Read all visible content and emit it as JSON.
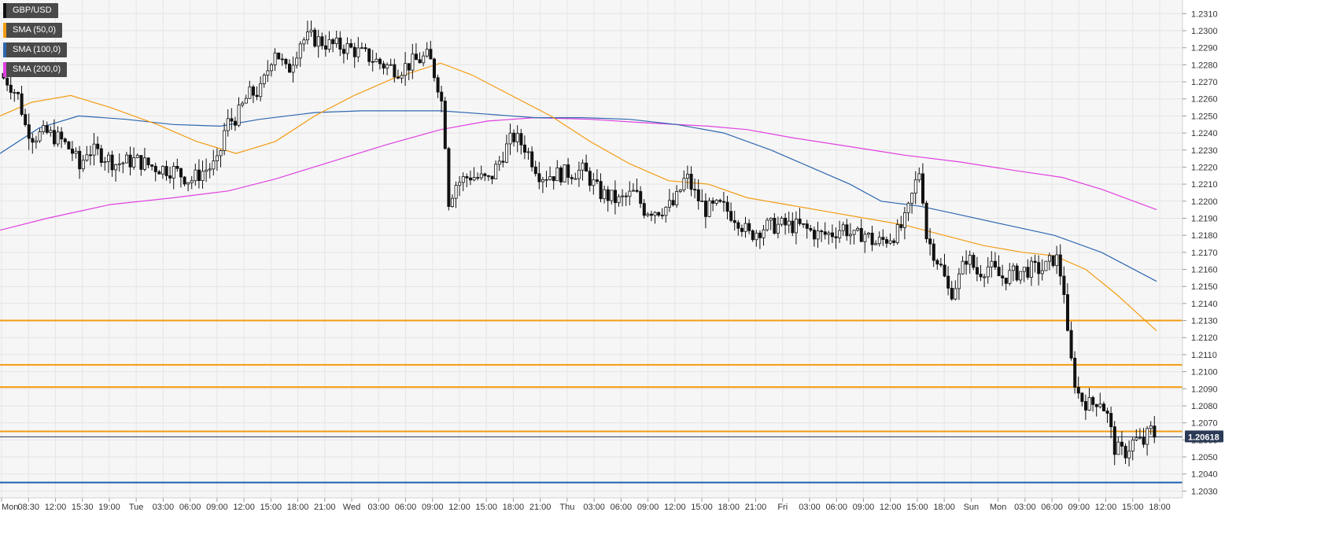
{
  "chart_data": {
    "type": "candlestick",
    "instrument": "GBP/USD",
    "timeframe_labels": [
      "Mon",
      "08:30",
      "12:00",
      "15:30",
      "19:00",
      "Tue",
      "03:00",
      "06:00",
      "09:00",
      "12:00",
      "15:00",
      "18:00",
      "21:00",
      "Wed",
      "03:00",
      "06:00",
      "09:00",
      "12:00",
      "15:00",
      "18:00",
      "21:00",
      "Thu",
      "03:00",
      "06:00",
      "09:00",
      "12:00",
      "15:00",
      "18:00",
      "21:00",
      "Fri",
      "03:00",
      "06:00",
      "09:00",
      "12:00",
      "15:00",
      "18:00",
      "Sun",
      "Mon",
      "03:00",
      "06:00",
      "09:00",
      "12:00",
      "15:00",
      "18:00"
    ],
    "y_ticks": [
      "1.2310",
      "1.2300",
      "1.2290",
      "1.2280",
      "1.2270",
      "1.2260",
      "1.2250",
      "1.2240",
      "1.2230",
      "1.2220",
      "1.2210",
      "1.2200",
      "1.2190",
      "1.2180",
      "1.2170",
      "1.2160",
      "1.2150",
      "1.2140",
      "1.2130",
      "1.2120",
      "1.2110",
      "1.2100",
      "1.2090",
      "1.2080",
      "1.2070",
      "1.2060",
      "1.2050",
      "1.2040",
      "1.2030"
    ],
    "ylim": [
      1.2026,
      1.2318
    ],
    "current_price": 1.20618,
    "current_price_label": "1.20618",
    "legend": [
      {
        "name": "GBP/USD",
        "color": "#111111"
      },
      {
        "name": "SMA (50,0)",
        "color": "#f39c12"
      },
      {
        "name": "SMA (100,0)",
        "color": "#2e67b0"
      },
      {
        "name": "SMA (200,0)",
        "color": "#e040e0"
      }
    ],
    "horizontal_levels": [
      {
        "value": 1.213,
        "color": "#f39c12"
      },
      {
        "value": 1.2104,
        "color": "#f39c12"
      },
      {
        "value": 1.2091,
        "color": "#f39c12"
      },
      {
        "value": 1.2065,
        "color": "#f39c12"
      },
      {
        "value": 1.2035,
        "color": "#1f5fb3"
      }
    ],
    "anchors": [
      [
        0,
        1.2275
      ],
      [
        14,
        1.227
      ],
      [
        28,
        1.226
      ],
      [
        34,
        1.2245
      ],
      [
        45,
        1.2238
      ],
      [
        62,
        1.224
      ],
      [
        80,
        1.2236
      ],
      [
        97,
        1.2228
      ],
      [
        105,
        1.2218
      ],
      [
        112,
        1.223
      ],
      [
        130,
        1.2228
      ],
      [
        150,
        1.2222
      ],
      [
        175,
        1.2224
      ],
      [
        200,
        1.222
      ],
      [
        225,
        1.2218
      ],
      [
        245,
        1.2212
      ],
      [
        262,
        1.2218
      ],
      [
        280,
        1.2222
      ],
      [
        290,
        1.2245
      ],
      [
        305,
        1.225
      ],
      [
        318,
        1.2262
      ],
      [
        335,
        1.2265
      ],
      [
        352,
        1.229
      ],
      [
        368,
        1.2275
      ],
      [
        385,
        1.2294
      ],
      [
        398,
        1.2296
      ],
      [
        420,
        1.2292
      ],
      [
        445,
        1.229
      ],
      [
        470,
        1.2285
      ],
      [
        490,
        1.228
      ],
      [
        510,
        1.2277
      ],
      [
        530,
        1.2282
      ],
      [
        548,
        1.2285
      ],
      [
        562,
        1.2265
      ],
      [
        567,
        1.225
      ],
      [
        573,
        1.22
      ],
      [
        582,
        1.221
      ],
      [
        600,
        1.2215
      ],
      [
        625,
        1.2212
      ],
      [
        645,
        1.223
      ],
      [
        655,
        1.2238
      ],
      [
        670,
        1.2232
      ],
      [
        690,
        1.2215
      ],
      [
        715,
        1.2216
      ],
      [
        745,
        1.2218
      ],
      [
        765,
        1.2205
      ],
      [
        790,
        1.22
      ],
      [
        810,
        1.2205
      ],
      [
        822,
        1.2195
      ],
      [
        840,
        1.2195
      ],
      [
        860,
        1.2198
      ],
      [
        875,
        1.2215
      ],
      [
        885,
        1.2205
      ],
      [
        900,
        1.2195
      ],
      [
        920,
        1.2197
      ],
      [
        940,
        1.219
      ],
      [
        955,
        1.218
      ],
      [
        975,
        1.2185
      ],
      [
        1000,
        1.2186
      ],
      [
        1020,
        1.2185
      ],
      [
        1045,
        1.218
      ],
      [
        1060,
        1.2181
      ],
      [
        1075,
        1.2185
      ],
      [
        1090,
        1.2178
      ],
      [
        1100,
        1.2182
      ],
      [
        1115,
        1.2175
      ],
      [
        1130,
        1.2178
      ],
      [
        1145,
        1.2182
      ],
      [
        1155,
        1.219
      ],
      [
        1165,
        1.2208
      ],
      [
        1173,
        1.222
      ],
      [
        1180,
        1.218
      ],
      [
        1190,
        1.217
      ],
      [
        1200,
        1.216
      ],
      [
        1210,
        1.2145
      ],
      [
        1222,
        1.2155
      ],
      [
        1232,
        1.2168
      ],
      [
        1245,
        1.2158
      ],
      [
        1260,
        1.2162
      ],
      [
        1275,
        1.2155
      ],
      [
        1295,
        1.2158
      ],
      [
        1310,
        1.216
      ],
      [
        1330,
        1.216
      ],
      [
        1345,
        1.2168
      ],
      [
        1355,
        1.215
      ],
      [
        1360,
        1.212
      ],
      [
        1367,
        1.2098
      ],
      [
        1375,
        1.2085
      ],
      [
        1390,
        1.208
      ],
      [
        1400,
        1.2085
      ],
      [
        1410,
        1.2075
      ],
      [
        1420,
        1.2055
      ],
      [
        1432,
        1.2052
      ],
      [
        1445,
        1.206
      ],
      [
        1456,
        1.2058
      ],
      [
        1465,
        1.2066
      ],
      [
        1472,
        1.2062
      ]
    ],
    "sma50": [
      [
        0,
        1.225
      ],
      [
        40,
        1.2258
      ],
      [
        90,
        1.2262
      ],
      [
        140,
        1.2255
      ],
      [
        200,
        1.2245
      ],
      [
        250,
        1.2235
      ],
      [
        300,
        1.2228
      ],
      [
        350,
        1.2235
      ],
      [
        400,
        1.225
      ],
      [
        450,
        1.2262
      ],
      [
        500,
        1.2272
      ],
      [
        560,
        1.2281
      ],
      [
        600,
        1.2274
      ],
      [
        650,
        1.2262
      ],
      [
        700,
        1.225
      ],
      [
        750,
        1.2235
      ],
      [
        800,
        1.2222
      ],
      [
        850,
        1.2212
      ],
      [
        900,
        1.221
      ],
      [
        950,
        1.2202
      ],
      [
        1000,
        1.2198
      ],
      [
        1050,
        1.2194
      ],
      [
        1100,
        1.219
      ],
      [
        1150,
        1.2186
      ],
      [
        1200,
        1.218
      ],
      [
        1250,
        1.2174
      ],
      [
        1300,
        1.217
      ],
      [
        1340,
        1.2168
      ],
      [
        1380,
        1.216
      ],
      [
        1420,
        1.2145
      ],
      [
        1470,
        1.2124
      ]
    ],
    "sma100": [
      [
        0,
        1.2228
      ],
      [
        50,
        1.2243
      ],
      [
        100,
        1.225
      ],
      [
        160,
        1.2248
      ],
      [
        220,
        1.2245
      ],
      [
        280,
        1.2244
      ],
      [
        330,
        1.2248
      ],
      [
        400,
        1.2252
      ],
      [
        460,
        1.2253
      ],
      [
        520,
        1.2253
      ],
      [
        560,
        1.2253
      ],
      [
        620,
        1.2251
      ],
      [
        680,
        1.2249
      ],
      [
        740,
        1.2249
      ],
      [
        800,
        1.2248
      ],
      [
        860,
        1.2245
      ],
      [
        920,
        1.224
      ],
      [
        980,
        1.223
      ],
      [
        1030,
        1.222
      ],
      [
        1080,
        1.221
      ],
      [
        1120,
        1.22
      ],
      [
        1170,
        1.2197
      ],
      [
        1220,
        1.2192
      ],
      [
        1280,
        1.2186
      ],
      [
        1340,
        1.218
      ],
      [
        1400,
        1.217
      ],
      [
        1470,
        1.2153
      ]
    ],
    "sma200": [
      [
        0,
        1.2183
      ],
      [
        60,
        1.219
      ],
      [
        140,
        1.2198
      ],
      [
        220,
        1.2202
      ],
      [
        290,
        1.2206
      ],
      [
        350,
        1.2213
      ],
      [
        420,
        1.2223
      ],
      [
        490,
        1.2233
      ],
      [
        560,
        1.2242
      ],
      [
        620,
        1.2247
      ],
      [
        680,
        1.2249
      ],
      [
        750,
        1.2248
      ],
      [
        820,
        1.2246
      ],
      [
        900,
        1.2244
      ],
      [
        950,
        1.2242
      ],
      [
        1010,
        1.2237
      ],
      [
        1080,
        1.2232
      ],
      [
        1150,
        1.2227
      ],
      [
        1220,
        1.2223
      ],
      [
        1290,
        1.2218
      ],
      [
        1350,
        1.2214
      ],
      [
        1400,
        1.2207
      ],
      [
        1470,
        1.2195
      ]
    ]
  }
}
